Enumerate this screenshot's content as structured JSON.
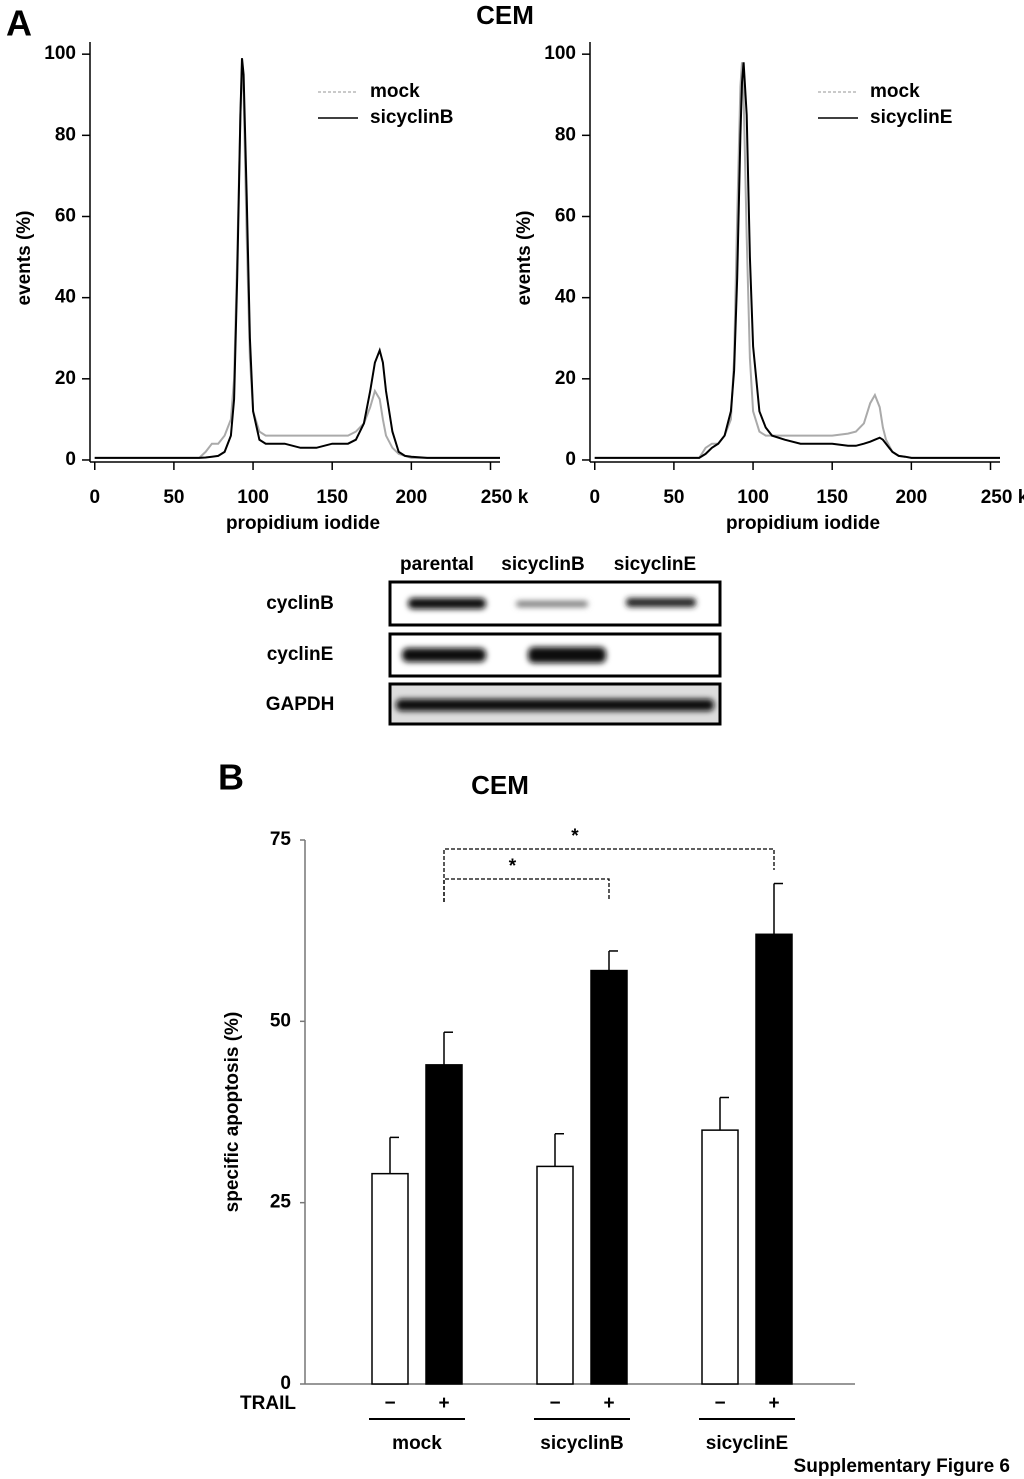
{
  "figure": {
    "panel_a": "A",
    "panel_a_title": "CEM",
    "panel_b": "B",
    "footer": "Supplementary Figure 6"
  },
  "blot": {
    "columns": [
      "parental",
      "sicyclinB",
      "sicyclinE"
    ],
    "rows": [
      "cyclinB",
      "cyclinE",
      "GAPDH"
    ]
  },
  "chart_data": [
    {
      "type": "line",
      "xlabel": "propidium iodide",
      "ylabel": "events (%)",
      "legend": "upper right",
      "x": [
        0,
        20,
        40,
        60,
        66,
        70,
        74,
        78,
        82,
        86,
        88,
        90,
        92,
        93,
        94,
        96,
        98,
        100,
        104,
        108,
        112,
        120,
        130,
        140,
        150,
        160,
        165,
        170,
        174,
        177,
        180,
        182,
        184,
        188,
        192,
        196,
        200,
        210,
        230,
        256
      ],
      "series": [
        {
          "name": "mock",
          "color": "#aaaaaa",
          "values": [
            0.5,
            0.5,
            0.5,
            0.5,
            0.5,
            2,
            4,
            4,
            6,
            10,
            20,
            50,
            85,
            97,
            90,
            55,
            25,
            12,
            7,
            6,
            6,
            6,
            6,
            6,
            6,
            6,
            7,
            9,
            13,
            17,
            15,
            10,
            6,
            3,
            1.5,
            1,
            0.5,
            0.5,
            0.5,
            0.5
          ]
        },
        {
          "name": "sicyclinB",
          "color": "#000000",
          "values": [
            0.5,
            0.5,
            0.5,
            0.5,
            0.5,
            0.6,
            0.8,
            1,
            2,
            6,
            15,
            45,
            85,
            99,
            95,
            65,
            30,
            12,
            5,
            4,
            4,
            4,
            3,
            3,
            4,
            4,
            5,
            9,
            17,
            24,
            27,
            24,
            17,
            7,
            2,
            1,
            0.8,
            0.5,
            0.5,
            0.5
          ]
        }
      ],
      "xlim": [
        -3,
        256
      ],
      "xticks": [
        0,
        50,
        100,
        150,
        200,
        {
          "value": 250,
          "label": "250 k"
        }
      ],
      "ylim": [
        -0.5,
        103
      ],
      "yticks": [
        0,
        20,
        40,
        60,
        80,
        100
      ]
    },
    {
      "type": "line",
      "xlabel": "propidium iodide",
      "ylabel": "events (%)",
      "legend": "upper right",
      "x": [
        0,
        20,
        40,
        60,
        66,
        70,
        74,
        78,
        82,
        86,
        88,
        90,
        92,
        93,
        94,
        96,
        98,
        100,
        104,
        108,
        112,
        120,
        130,
        140,
        150,
        160,
        165,
        170,
        174,
        177,
        180,
        182,
        184,
        188,
        192,
        196,
        200,
        210,
        230,
        256
      ],
      "series": [
        {
          "name": "mock",
          "color": "#aaaaaa",
          "values": [
            0.5,
            0.5,
            0.5,
            0.5,
            0.5,
            3,
            4,
            4,
            6,
            10,
            25,
            60,
            92,
            98,
            90,
            55,
            25,
            12,
            7,
            6,
            6,
            6,
            6,
            6,
            6,
            6.5,
            7,
            9,
            14,
            16,
            13,
            8,
            5,
            2,
            1,
            0.8,
            0.5,
            0.5,
            0.5,
            0.5
          ]
        },
        {
          "name": "sicyclinE",
          "color": "#000000",
          "values": [
            0.5,
            0.5,
            0.5,
            0.5,
            0.5,
            1.5,
            3,
            4,
            6,
            12,
            22,
            45,
            80,
            93,
            98,
            85,
            50,
            28,
            12,
            8,
            6,
            5,
            4,
            4,
            4,
            3.5,
            3.5,
            4,
            4.5,
            5,
            5.5,
            5,
            4,
            2,
            1,
            0.8,
            0.5,
            0.5,
            0.5,
            0.5
          ]
        }
      ],
      "xlim": [
        -3,
        256
      ],
      "xticks": [
        0,
        50,
        100,
        150,
        200,
        {
          "value": 250,
          "label": "250 k"
        }
      ],
      "ylim": [
        -0.5,
        103
      ],
      "yticks": [
        0,
        20,
        40,
        60,
        80,
        100
      ]
    },
    {
      "type": "bar",
      "title": "CEM",
      "ylabel": "specific apoptosis (%)",
      "series_label": "TRAIL",
      "categories": [
        "mock",
        "sicyclinB",
        "sicyclinE"
      ],
      "series": [
        {
          "name": "−",
          "color": "#ffffff",
          "values": [
            29,
            30,
            35
          ],
          "errors": [
            5,
            4.5,
            4.5
          ]
        },
        {
          "name": "+",
          "color": "#000000",
          "values": [
            44,
            57,
            62
          ],
          "errors": [
            4.5,
            2.7,
            7
          ]
        }
      ],
      "annotations": [
        "*",
        "*"
      ],
      "ylim": [
        0,
        75
      ],
      "yticks": [
        0,
        25,
        50,
        75
      ]
    }
  ]
}
